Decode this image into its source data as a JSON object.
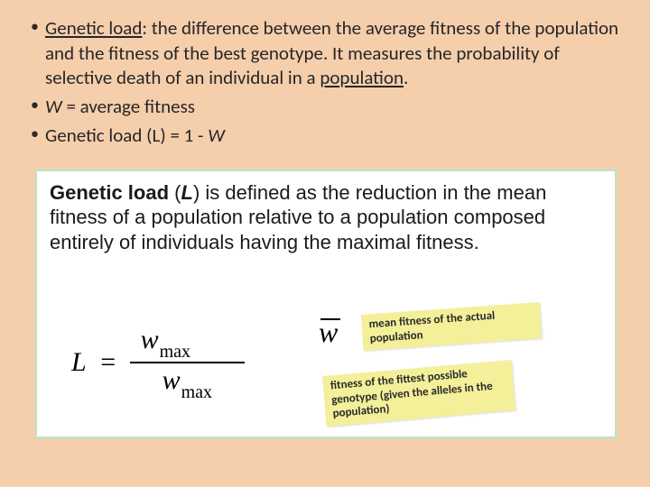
{
  "bullets": {
    "b1_pre": "Genetic load",
    "b1_rest": ": the difference between the average fitness of the population and the fitness of the best genotype. It measures the probability of selective death of an individual in a ",
    "b1_pop": "population",
    "b1_end": ".",
    "b2_w": "W",
    "b2_rest": " =  average fitness",
    "b3_pre": "Genetic load (L) = 1 - ",
    "b3_w": "W"
  },
  "definition": {
    "t1": "Genetic load",
    "t2": " (",
    "tL": "L",
    "t3": ") is defined as the reduction in the mean fitness of a population relative to a population composed entirely of individuals having the maximal fitness."
  },
  "formula": {
    "L": "L",
    "eq": "=",
    "w": "w",
    "max": "max",
    "wbar": "w"
  },
  "notes": {
    "n1": "mean fitness of the actual population",
    "n2": "fitness of the fittest possible genotype (given the alleles in the population)"
  },
  "colors": {
    "slide_bg": "#f5ceac",
    "box_border": "#cdddbf",
    "note_bg": "#f4f09a"
  }
}
